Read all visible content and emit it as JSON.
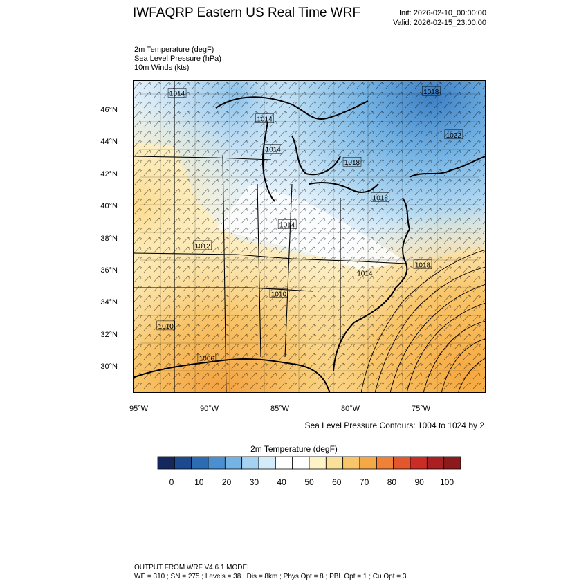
{
  "header": {
    "title": "IWFAQRP Eastern US Real Time WRF",
    "init": "Init: 2026-02-10_00:00:00",
    "valid": "Valid: 2026-02-15_23:00:00"
  },
  "fields": [
    "2m Temperature   (degF)",
    "Sea Level Pressure   (hPa)",
    "10m Winds   (kts)"
  ],
  "map": {
    "lat_labels": [
      "46°N",
      "44°N",
      "42°N",
      "40°N",
      "38°N",
      "36°N",
      "34°N",
      "32°N",
      "30°N"
    ],
    "lat_values": [
      46,
      44,
      42,
      40,
      38,
      36,
      34,
      32,
      30
    ],
    "lon_labels": [
      "95°W",
      "90°W",
      "85°W",
      "80°W",
      "75°W"
    ],
    "lon_values": [
      -95,
      -90,
      -85,
      -80,
      -75
    ],
    "pressure_labels": [
      {
        "text": "1014",
        "lon": -92.4,
        "lat": 47.1
      },
      {
        "text": "1018",
        "lon": -74.4,
        "lat": 47.2
      },
      {
        "text": "1014",
        "lon": -86.2,
        "lat": 45.5
      },
      {
        "text": "1022",
        "lon": -72.8,
        "lat": 44.5
      },
      {
        "text": "1014",
        "lon": -85.6,
        "lat": 43.6
      },
      {
        "text": "1018",
        "lon": -80.0,
        "lat": 42.8
      },
      {
        "text": "1018",
        "lon": -78.0,
        "lat": 40.6
      },
      {
        "text": "1014",
        "lon": -84.6,
        "lat": 38.9
      },
      {
        "text": "1012",
        "lon": -90.6,
        "lat": 37.6
      },
      {
        "text": "1018",
        "lon": -75.0,
        "lat": 36.4
      },
      {
        "text": "1014",
        "lon": -79.1,
        "lat": 35.9
      },
      {
        "text": "1010",
        "lon": -85.2,
        "lat": 34.6
      },
      {
        "text": "1010",
        "lon": -93.2,
        "lat": 32.6
      },
      {
        "text": "1006",
        "lon": -90.3,
        "lat": 30.6
      }
    ],
    "contour_note": "Sea Level Pressure Contours: 1004 to 1024 by 2"
  },
  "colorbar": {
    "title": "2m Temperature  (degF)",
    "tick_labels": [
      "0",
      "10",
      "20",
      "30",
      "40",
      "50",
      "60",
      "70",
      "80",
      "90",
      "100"
    ],
    "colors": [
      "#15285e",
      "#1c4a8f",
      "#2b6cb3",
      "#4a90d0",
      "#74b3e4",
      "#a4d2f1",
      "#d4ecfa",
      "#ffffff",
      "#ffffff",
      "#fdf3c4",
      "#fbe09a",
      "#f8c56a",
      "#f5a847",
      "#ef8238",
      "#e4562c",
      "#cb2c26",
      "#ab1e22",
      "#8c1a1c"
    ]
  },
  "footer": {
    "line1": "OUTPUT FROM WRF V4.6.1 MODEL",
    "line2": "WE = 310 ; SN = 275 ; Levels = 38 ; Dis = 8km ; Phys Opt = 8 ; PBL Opt = 1 ; Cu Opt = 3"
  }
}
